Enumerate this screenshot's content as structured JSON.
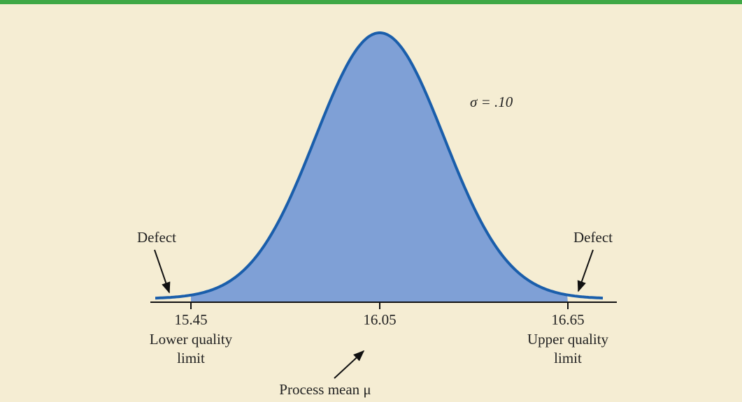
{
  "sigma_label": "σ = .10",
  "left_defect": "Defect",
  "right_defect": "Defect",
  "limits": [
    {
      "value": "15.45",
      "label_line1": "Lower quality",
      "label_line2": "limit"
    },
    {
      "value": "16.05"
    },
    {
      "value": "16.65",
      "label_line1": "Upper quality",
      "label_line2": "limit"
    }
  ],
  "mean_label": "Process mean μ"
}
